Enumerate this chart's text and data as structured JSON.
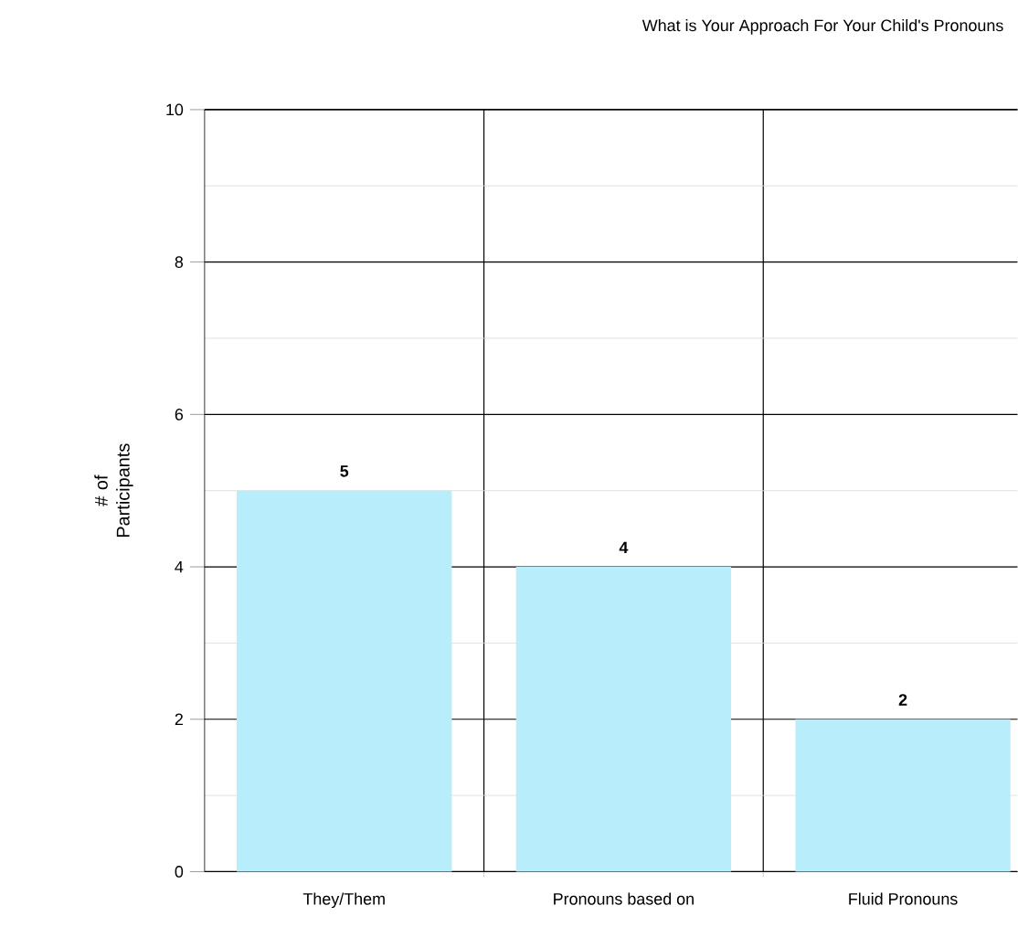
{
  "chart_data": {
    "type": "bar",
    "title": "What is Your Approach For Your Child's Pronouns",
    "ylabel": "# of Participants",
    "categories": [
      "They/Them",
      "Pronouns based on",
      "Fluid Pronouns"
    ],
    "values": [
      5,
      4,
      2
    ],
    "color": "#b8eefb",
    "ylim": [
      0,
      10
    ],
    "yticks": [
      0,
      2,
      4,
      6,
      8,
      10
    ],
    "grid": "y",
    "data_labels": true
  }
}
